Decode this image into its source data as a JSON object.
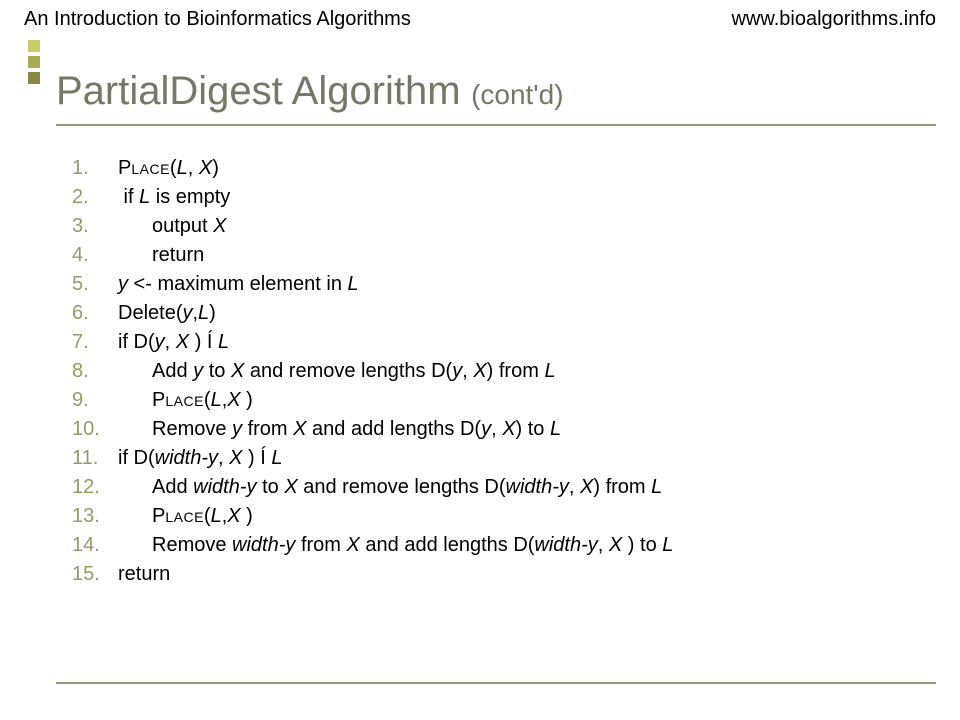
{
  "header": {
    "left": "An Introduction to Bioinformatics Algorithms",
    "right": "www.bioalgorithms.info"
  },
  "title": {
    "main": "PartialDigest Algorithm",
    "suffix": "(cont'd)"
  },
  "accent": {
    "colors": [
      "#cccc66",
      "#aaaa55",
      "#888844"
    ],
    "squareCount": 3
  },
  "algo": {
    "lines": [
      {
        "indent": 0,
        "html": "P<span class='sc'>lace</span>(<span class='it'>L</span>, <span class='it'>X</span>)"
      },
      {
        "indent": 0,
        "html": "&nbsp;if <span class='it'>L</span> is empty"
      },
      {
        "indent": 1,
        "html": "output <span class='it'>X</span>"
      },
      {
        "indent": 1,
        "html": "return"
      },
      {
        "indent": 0,
        "html": "<span class='it'>y</span> &lt;- maximum element in <span class='it'>L</span>"
      },
      {
        "indent": 0,
        "html": "Delete(<span class='it'>y</span>,<span class='it'>L</span>)"
      },
      {
        "indent": 0,
        "html": "if D(<span class='it'>y</span>, <span class='it'>X</span> ) Í <span class='it'>L</span>"
      },
      {
        "indent": 1,
        "html": "Add <span class='it'>y</span> to <span class='it'>X</span> and remove lengths D(<span class='it'>y</span>, <span class='it'>X</span>) from <span class='it'>L</span>"
      },
      {
        "indent": 1,
        "html": "P<span class='sc'>lace</span>(<span class='it'>L</span>,<span class='it'>X</span> )"
      },
      {
        "indent": 1,
        "html": "Remove <span class='it'>y</span> from <span class='it'>X</span> and add lengths D(<span class='it'>y</span>, <span class='it'>X</span>) to <span class='it'>L</span>"
      },
      {
        "indent": 0,
        "html": "if D(<span class='it'>width-y</span>, <span class='it'>X</span> ) Í <span class='it'>L</span>"
      },
      {
        "indent": 1,
        "html": "Add <span class='it'>width-y</span> to <span class='it'>X</span> and remove lengths D(<span class='it'>width-y</span>, <span class='it'>X</span>) from <span class='it'>L</span>"
      },
      {
        "indent": 1,
        "html": "P<span class='sc'>lace</span>(<span class='it'>L</span>,<span class='it'>X</span> )"
      },
      {
        "indent": 1,
        "html": "Remove <span class='it'>width-y</span> from <span class='it'>X</span> and add lengths D(<span class='it'>width-y</span>, <span class='it'>X</span> ) to <span class='it'>L</span>"
      },
      {
        "indent": 0,
        "html": "return"
      }
    ]
  }
}
